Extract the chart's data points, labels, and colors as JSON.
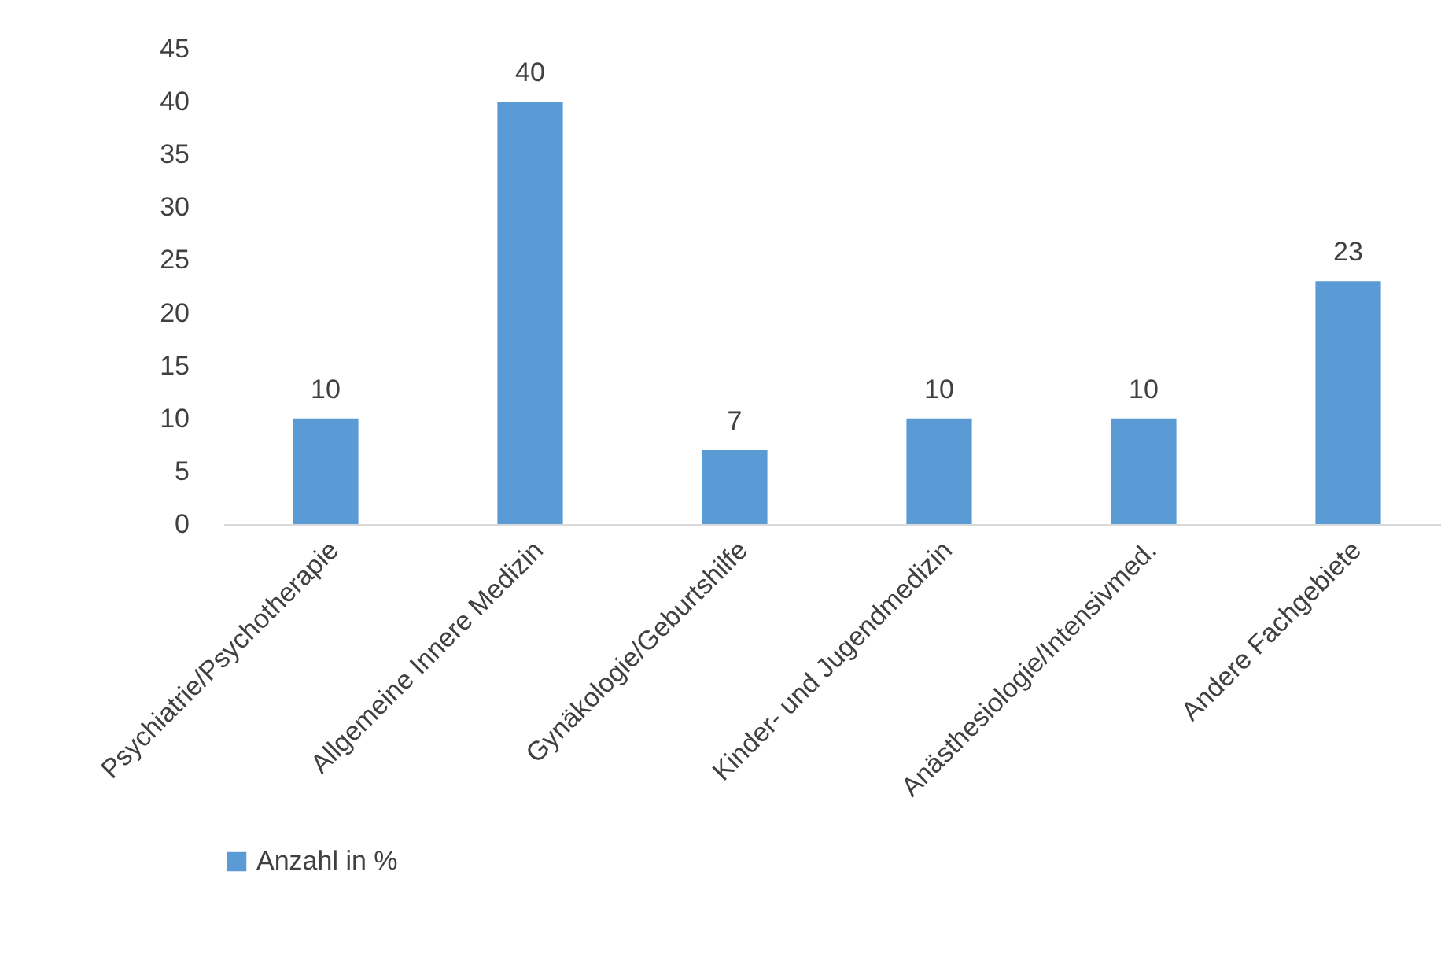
{
  "chart_data": {
    "type": "bar",
    "categories": [
      "Psychiatrie/Psychotherapie",
      "Allgemeine Innere Medizin",
      "Gynäkologie/Geburtshilfe",
      "Kinder- und Jugendmedizin",
      "Anästhesiologie/Intensivmed.",
      "Andere Fachgebiete"
    ],
    "series": [
      {
        "name": "Anzahl in %",
        "color": "#5b9bd5",
        "values": [
          10,
          40,
          7,
          10,
          10,
          23
        ]
      }
    ],
    "ylim": [
      0,
      45
    ],
    "yticks": [
      0,
      5,
      10,
      15,
      20,
      25,
      30,
      35,
      40,
      45
    ],
    "data_labels": true,
    "legend": "bottom",
    "grid": false
  }
}
